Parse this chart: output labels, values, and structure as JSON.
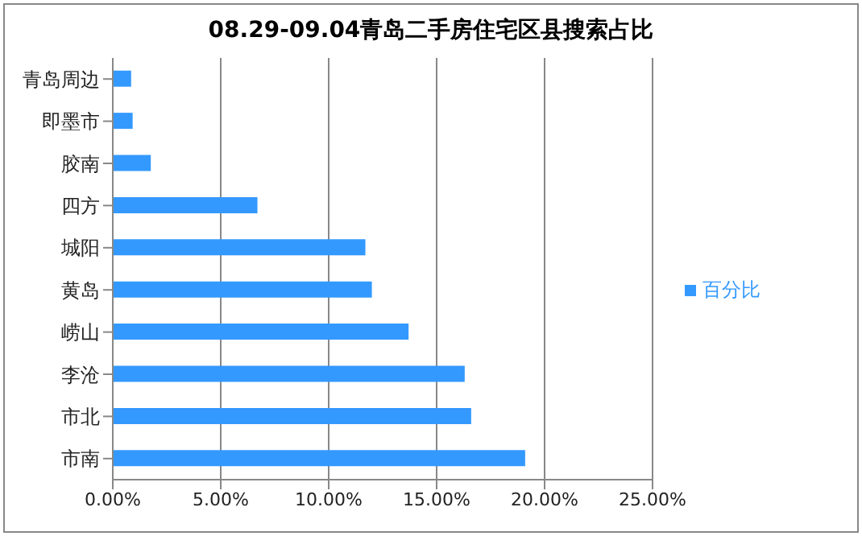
{
  "chart_data": {
    "type": "bar",
    "orientation": "horizontal",
    "title": "08.29-09.04青岛二手房住宅区县搜索占比",
    "categories": [
      "青岛周边",
      "即墨市",
      "胶南",
      "四方",
      "城阳",
      "黄岛",
      "崂山",
      "李沧",
      "市北",
      "市南"
    ],
    "series": [
      {
        "name": "百分比",
        "color": "#3399ff",
        "values": [
          0.85,
          0.92,
          1.76,
          6.7,
          11.7,
          12.0,
          13.7,
          16.3,
          16.6,
          19.1
        ]
      }
    ],
    "xlim": [
      0,
      25
    ],
    "xticks": [
      {
        "value": 0,
        "label": "0.00%"
      },
      {
        "value": 5,
        "label": "5.00%"
      },
      {
        "value": 10,
        "label": "10.00%"
      },
      {
        "value": 15,
        "label": "15.00%"
      },
      {
        "value": 20,
        "label": "20.00%"
      },
      {
        "value": 25,
        "label": "25.00%"
      }
    ],
    "grid": "x",
    "legend": "right"
  }
}
